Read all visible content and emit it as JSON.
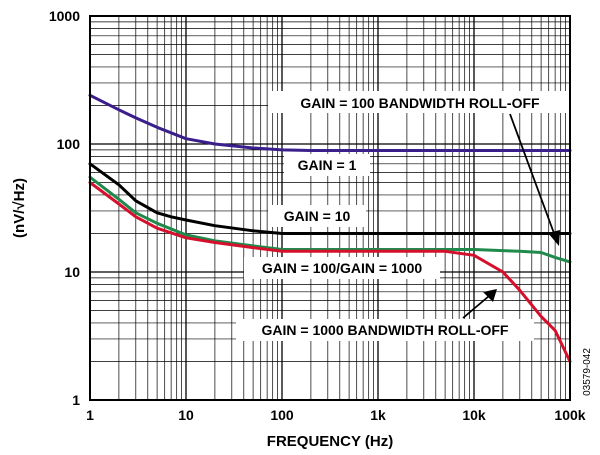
{
  "chart_data": {
    "type": "line",
    "xlabel": "FREQUENCY (Hz)",
    "ylabel": "(nV/√Hz)",
    "x_scale": "log",
    "y_scale": "log",
    "xlim": [
      1,
      100000
    ],
    "ylim": [
      1,
      1000
    ],
    "grid": true,
    "x_ticks": [
      {
        "value": 1,
        "label": "1"
      },
      {
        "value": 10,
        "label": "10"
      },
      {
        "value": 100,
        "label": "100"
      },
      {
        "value": 1000,
        "label": "1k"
      },
      {
        "value": 10000,
        "label": "10k"
      },
      {
        "value": 100000,
        "label": "100k"
      }
    ],
    "y_ticks": [
      {
        "value": 1,
        "label": "1"
      },
      {
        "value": 10,
        "label": "10"
      },
      {
        "value": 100,
        "label": "100"
      },
      {
        "value": 1000,
        "label": "1000"
      }
    ],
    "series": [
      {
        "color": "#3a1e8c",
        "x": [
          1,
          2,
          3,
          5,
          10,
          20,
          50,
          100,
          200,
          500,
          1000,
          10000,
          100000
        ],
        "y": [
          240,
          185,
          160,
          135,
          110,
          100,
          93,
          90,
          89,
          89,
          89,
          89,
          89
        ]
      },
      {
        "color": "#000000",
        "x": [
          1,
          2,
          3,
          5,
          7,
          10,
          20,
          50,
          100,
          200,
          1000,
          10000,
          100000
        ],
        "y": [
          70,
          48,
          36,
          29,
          27,
          25.5,
          23,
          21,
          20,
          20,
          20,
          20,
          20
        ]
      },
      {
        "color": "#1f8a4c",
        "x": [
          1,
          2,
          3,
          5,
          10,
          20,
          50,
          100,
          1000,
          10000,
          30000,
          50000,
          70000,
          100000
        ],
        "y": [
          55,
          37,
          29,
          24,
          19.5,
          17.5,
          16,
          15,
          15,
          15,
          14.5,
          14.2,
          13,
          12
        ]
      },
      {
        "color": "#d4102c",
        "x": [
          1,
          2,
          3,
          5,
          10,
          20,
          50,
          100,
          1000,
          5000,
          10000,
          20000,
          30000,
          50000,
          70000,
          100000
        ],
        "y": [
          50,
          34,
          27,
          22,
          18.5,
          17,
          15.5,
          14.5,
          14.5,
          14.5,
          13.5,
          10,
          7.2,
          4.5,
          3.5,
          2
        ]
      }
    ],
    "annotations": [
      {
        "text": "GAIN = 100 BANDWIDTH ROLL-OFF"
      },
      {
        "text": "GAIN = 1"
      },
      {
        "text": "GAIN = 10"
      },
      {
        "text": "GAIN = 100/GAIN = 1000"
      },
      {
        "text": "GAIN = 1000 BANDWIDTH ROLL-OFF"
      }
    ],
    "figure_id": "03579-042"
  }
}
